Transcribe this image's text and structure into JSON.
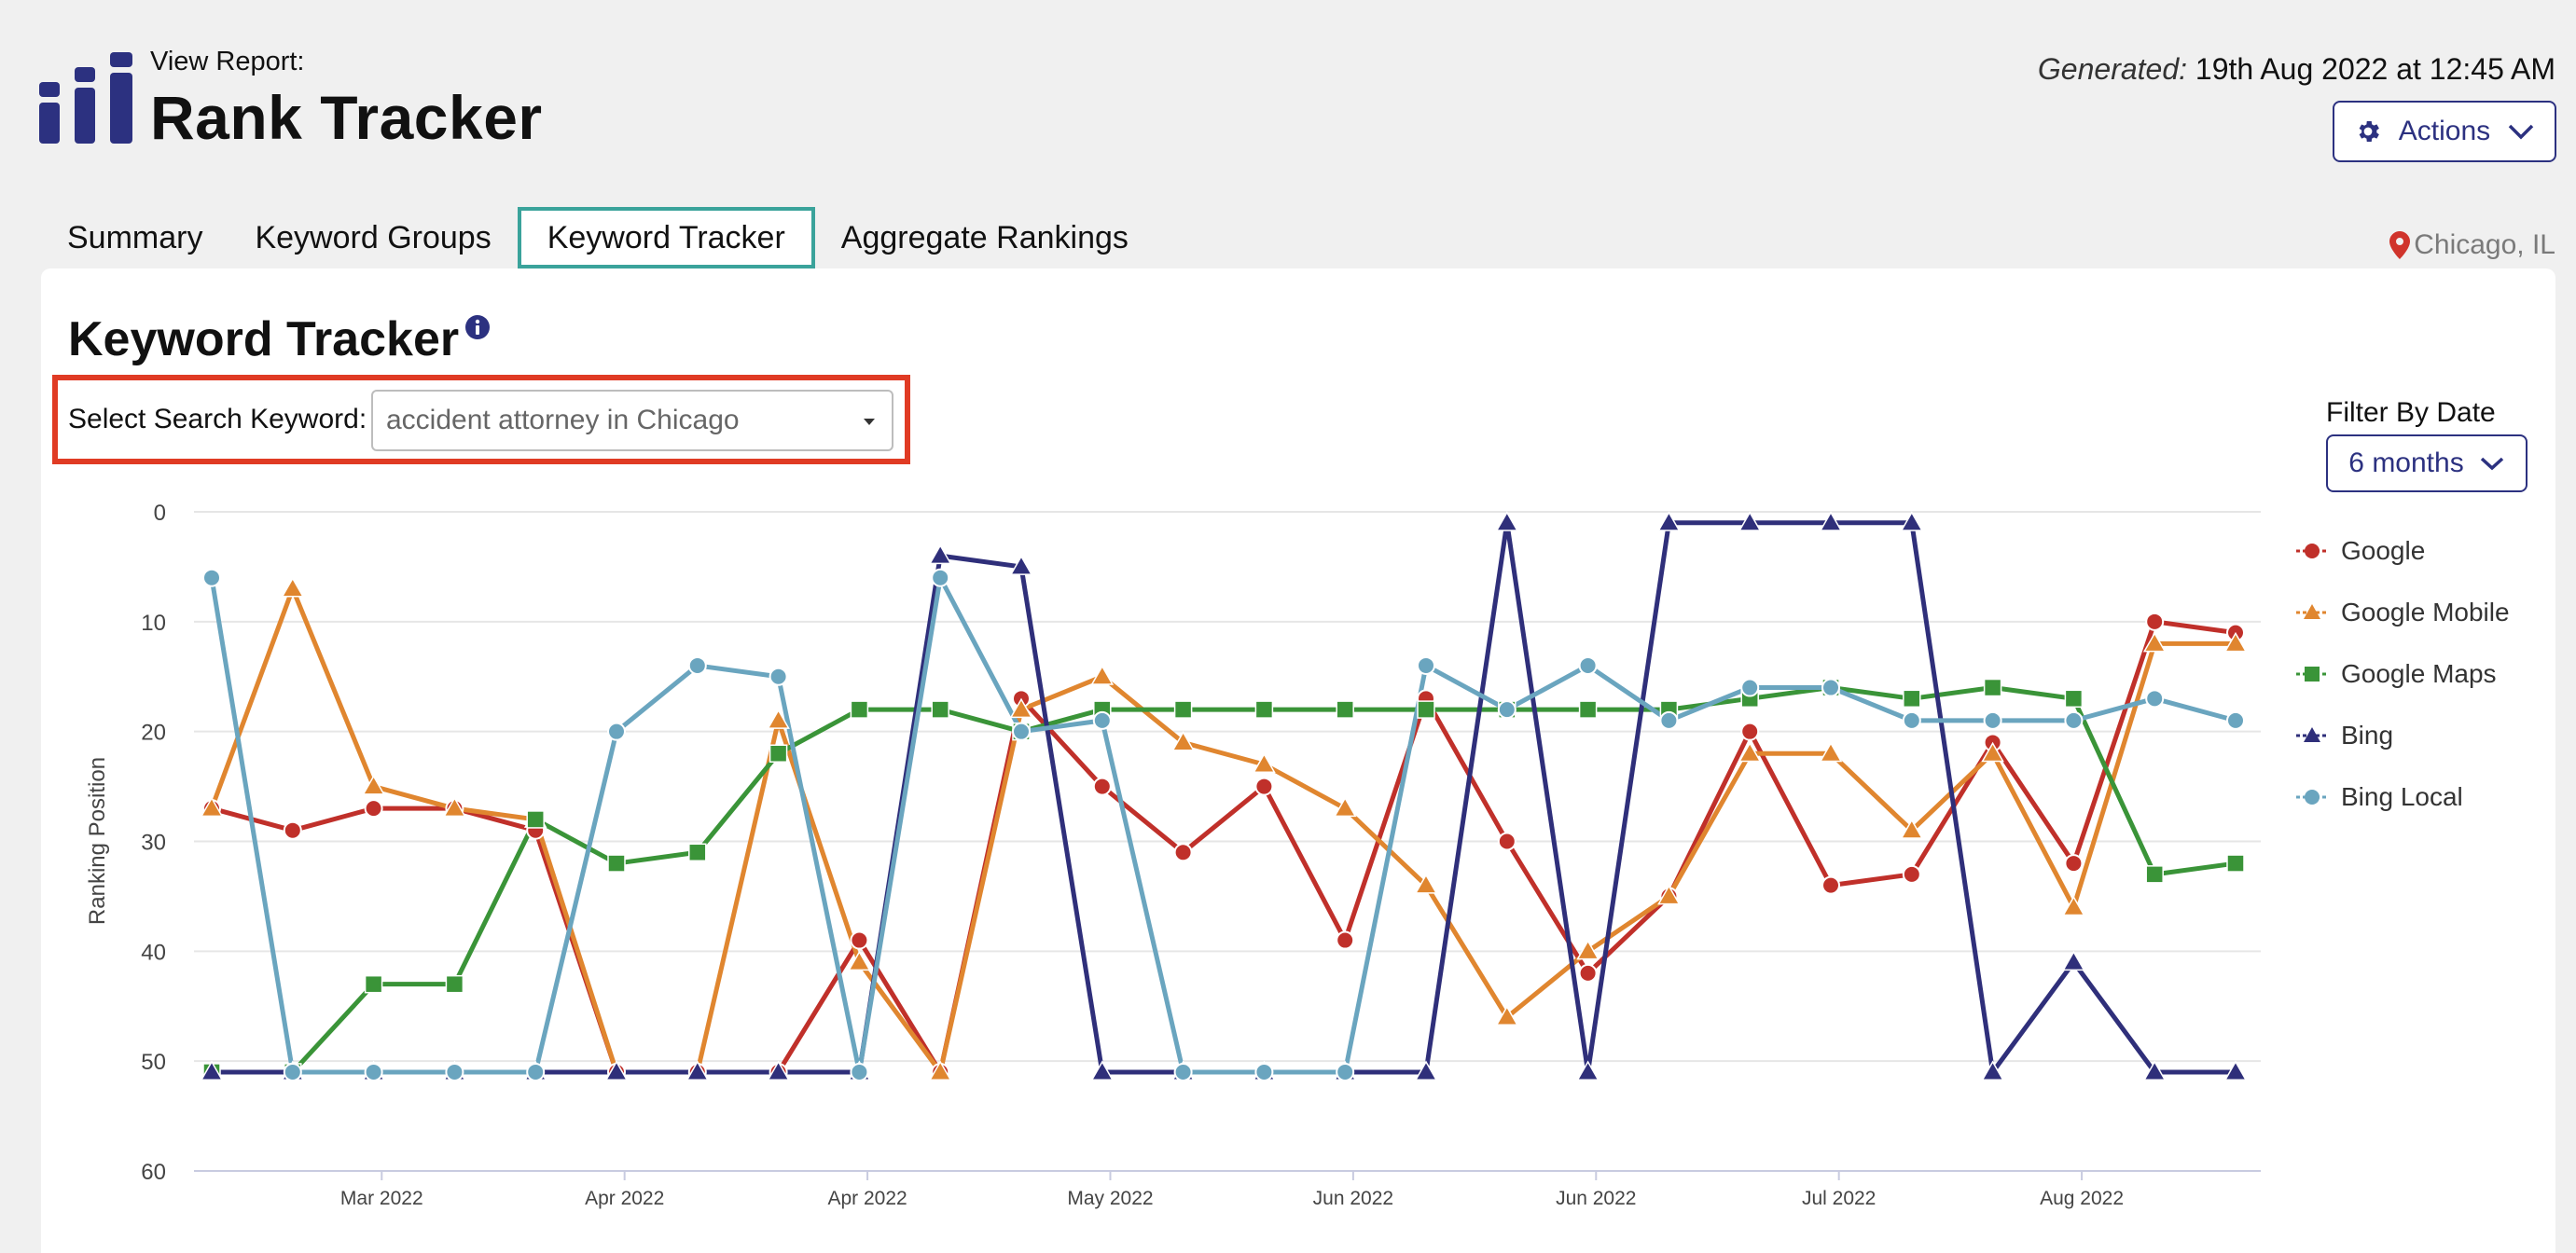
{
  "header": {
    "subtitle": "View Report:",
    "title": "Rank Tracker",
    "generated_label": "Generated:",
    "generated_value": "19th Aug 2022 at 12:45 AM",
    "actions_label": "Actions",
    "logo_icon": "bar-chart-logo-icon"
  },
  "tabs": [
    {
      "label": "Summary",
      "active": false
    },
    {
      "label": "Keyword Groups",
      "active": false
    },
    {
      "label": "Keyword Tracker",
      "active": true
    },
    {
      "label": "Aggregate Rankings",
      "active": false
    }
  ],
  "location": "Chicago, IL",
  "card": {
    "title": "Keyword Tracker",
    "keyword_label": "Select Search Keyword:",
    "keyword_value": "accident attorney in Chicago",
    "filter_label": "Filter By Date",
    "filter_value": "6 months"
  },
  "colors": {
    "brand": "#2c3180",
    "tab_active_border": "#3aa39b",
    "highlight_box": "#e03b24"
  },
  "chart_data": {
    "type": "line",
    "ylabel": "Ranking Position",
    "ylim": [
      60,
      0
    ],
    "y_reversed": true,
    "yticks": [
      0,
      10,
      20,
      30,
      40,
      50,
      60
    ],
    "grid": true,
    "legend_position": "right",
    "x_count": 26,
    "x_ticks": [
      {
        "label": "Mar 2022",
        "pos": 2.1
      },
      {
        "label": "Apr 2022",
        "pos": 5.1
      },
      {
        "label": "Apr 2022",
        "pos": 8.1
      },
      {
        "label": "May 2022",
        "pos": 11.1
      },
      {
        "label": "Jun 2022",
        "pos": 14.1
      },
      {
        "label": "Jun 2022",
        "pos": 17.1
      },
      {
        "label": "Jul 2022",
        "pos": 20.1
      },
      {
        "label": "Aug 2022",
        "pos": 23.1
      }
    ],
    "series": [
      {
        "name": "Google",
        "color": "#c0302a",
        "marker": "circle",
        "values": [
          27,
          29,
          27,
          27,
          29,
          51,
          51,
          51,
          39,
          51,
          17,
          25,
          31,
          25,
          39,
          17,
          30,
          42,
          35,
          20,
          34,
          33,
          21,
          32,
          10,
          11
        ]
      },
      {
        "name": "Google Mobile",
        "color": "#e0862f",
        "marker": "triangle",
        "values": [
          27,
          7,
          25,
          27,
          28,
          51,
          51,
          19,
          41,
          51,
          18,
          15,
          21,
          23,
          27,
          34,
          46,
          40,
          35,
          22,
          22,
          29,
          22,
          36,
          12,
          12
        ]
      },
      {
        "name": "Google Maps",
        "color": "#3a9438",
        "marker": "square",
        "values": [
          51,
          51,
          43,
          43,
          28,
          32,
          31,
          22,
          18,
          18,
          20,
          18,
          18,
          18,
          18,
          18,
          18,
          18,
          18,
          17,
          16,
          17,
          16,
          17,
          33,
          32
        ]
      },
      {
        "name": "Bing",
        "color": "#2f2f7a",
        "marker": "triangle",
        "values": [
          51,
          51,
          51,
          51,
          51,
          51,
          51,
          51,
          51,
          4,
          5,
          51,
          51,
          51,
          51,
          51,
          1,
          51,
          1,
          1,
          1,
          1,
          51,
          41,
          51,
          51
        ]
      },
      {
        "name": "Bing Local",
        "color": "#6aa5bf",
        "marker": "circle",
        "values": [
          6,
          51,
          51,
          51,
          51,
          20,
          14,
          15,
          51,
          6,
          20,
          19,
          51,
          51,
          51,
          14,
          18,
          14,
          19,
          16,
          16,
          19,
          19,
          19,
          17,
          19
        ]
      }
    ]
  }
}
